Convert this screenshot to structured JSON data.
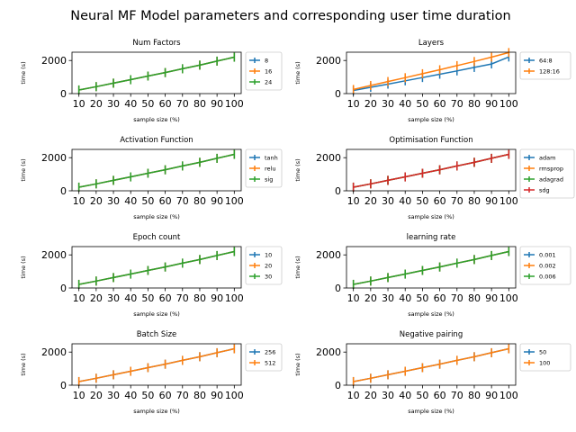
{
  "figure": {
    "title": "Neural MF Model parameters and corresponding user time duration"
  },
  "colors": {
    "series": [
      "#1f77b4",
      "#ff7f0e",
      "#2ca02c",
      "#d62728"
    ],
    "axis": "#000000",
    "legend_border": "#cccccc"
  },
  "chart_data": [
    {
      "type": "line",
      "title": "Num Factors",
      "xlabel": "sample size (%)",
      "ylabel": "time (s)",
      "x": [
        10,
        20,
        30,
        40,
        50,
        60,
        70,
        80,
        90,
        100
      ],
      "ylim": [
        0,
        2500
      ],
      "yticks": [
        0,
        2000
      ],
      "legend_position": "right",
      "series": [
        {
          "name": "8",
          "values": [
            220,
            420,
            630,
            840,
            1060,
            1270,
            1500,
            1720,
            1960,
            2200
          ]
        },
        {
          "name": "16",
          "values": [
            220,
            420,
            630,
            840,
            1060,
            1270,
            1500,
            1720,
            1960,
            2200
          ]
        },
        {
          "name": "24",
          "values": [
            220,
            420,
            630,
            840,
            1060,
            1270,
            1500,
            1720,
            1960,
            2200
          ]
        }
      ]
    },
    {
      "type": "line",
      "title": "Layers",
      "xlabel": "sample size (%)",
      "ylabel": "time (s)",
      "x": [
        10,
        20,
        30,
        40,
        50,
        60,
        70,
        80,
        90,
        100
      ],
      "ylim": [
        0,
        2500
      ],
      "yticks": [
        0,
        2000
      ],
      "legend_position": "right",
      "series": [
        {
          "name": "64:8",
          "values": [
            190,
            380,
            570,
            770,
            970,
            1170,
            1370,
            1580,
            1790,
            2210
          ]
        },
        {
          "name": "128:16",
          "values": [
            250,
            490,
            730,
            960,
            1200,
            1440,
            1690,
            1940,
            2200,
            2480
          ]
        }
      ]
    },
    {
      "type": "line",
      "title": "Activation Function",
      "xlabel": "sample size (%)",
      "ylabel": "time (s)",
      "x": [
        10,
        20,
        30,
        40,
        50,
        60,
        70,
        80,
        90,
        100
      ],
      "ylim": [
        0,
        2500
      ],
      "yticks": [
        0,
        2000
      ],
      "legend_position": "right",
      "series": [
        {
          "name": "tanh",
          "values": [
            220,
            420,
            630,
            840,
            1060,
            1270,
            1500,
            1720,
            1960,
            2200
          ]
        },
        {
          "name": "relu",
          "values": [
            220,
            420,
            630,
            840,
            1060,
            1270,
            1500,
            1720,
            1960,
            2200
          ]
        },
        {
          "name": "sig",
          "values": [
            220,
            420,
            630,
            840,
            1060,
            1270,
            1500,
            1720,
            1960,
            2200
          ]
        }
      ]
    },
    {
      "type": "line",
      "title": "Optimisation Function",
      "xlabel": "sample size (%)",
      "ylabel": "time (s)",
      "x": [
        10,
        20,
        30,
        40,
        50,
        60,
        70,
        80,
        90,
        100
      ],
      "ylim": [
        0,
        2500
      ],
      "yticks": [
        0,
        2000
      ],
      "legend_position": "right",
      "series": [
        {
          "name": "adam",
          "values": [
            220,
            420,
            630,
            840,
            1060,
            1270,
            1500,
            1720,
            1960,
            2200
          ]
        },
        {
          "name": "rmsprop",
          "values": [
            220,
            420,
            630,
            840,
            1060,
            1270,
            1500,
            1720,
            1960,
            2200
          ]
        },
        {
          "name": "adagrad",
          "values": [
            220,
            420,
            630,
            840,
            1060,
            1270,
            1500,
            1720,
            1960,
            2200
          ]
        },
        {
          "name": "sdg",
          "values": [
            220,
            420,
            630,
            840,
            1060,
            1270,
            1500,
            1720,
            1960,
            2200
          ]
        }
      ]
    },
    {
      "type": "line",
      "title": "Epoch count",
      "xlabel": "sample size (%)",
      "ylabel": "time (s)",
      "x": [
        10,
        20,
        30,
        40,
        50,
        60,
        70,
        80,
        90,
        100
      ],
      "ylim": [
        0,
        2500
      ],
      "yticks": [
        0,
        2000
      ],
      "legend_position": "right",
      "series": [
        {
          "name": "10",
          "values": [
            220,
            420,
            630,
            840,
            1060,
            1270,
            1500,
            1720,
            1960,
            2200
          ]
        },
        {
          "name": "20",
          "values": [
            220,
            420,
            630,
            840,
            1060,
            1270,
            1500,
            1720,
            1960,
            2200
          ]
        },
        {
          "name": "30",
          "values": [
            220,
            420,
            630,
            840,
            1060,
            1270,
            1500,
            1720,
            1960,
            2200
          ]
        }
      ]
    },
    {
      "type": "line",
      "title": "learning rate",
      "xlabel": "sample size (%)",
      "ylabel": "time (s)",
      "x": [
        10,
        20,
        30,
        40,
        50,
        60,
        70,
        80,
        90,
        100
      ],
      "ylim": [
        0,
        2500
      ],
      "yticks": [
        0,
        2000
      ],
      "legend_position": "right",
      "series": [
        {
          "name": "0.001",
          "values": [
            220,
            420,
            630,
            840,
            1060,
            1270,
            1500,
            1720,
            1960,
            2200
          ]
        },
        {
          "name": "0.002",
          "values": [
            220,
            420,
            630,
            840,
            1060,
            1270,
            1500,
            1720,
            1960,
            2200
          ]
        },
        {
          "name": "0.006",
          "values": [
            220,
            420,
            630,
            840,
            1060,
            1270,
            1500,
            1720,
            1960,
            2200
          ]
        }
      ]
    },
    {
      "type": "line",
      "title": "Batch Size",
      "xlabel": "sample size (%)",
      "ylabel": "time (s)",
      "x": [
        10,
        20,
        30,
        40,
        50,
        60,
        70,
        80,
        90,
        100
      ],
      "ylim": [
        0,
        2500
      ],
      "yticks": [
        0,
        2000
      ],
      "legend_position": "right",
      "series": [
        {
          "name": "256",
          "values": [
            220,
            420,
            630,
            840,
            1060,
            1270,
            1500,
            1720,
            1960,
            2200
          ]
        },
        {
          "name": "512",
          "values": [
            220,
            420,
            630,
            840,
            1060,
            1270,
            1500,
            1720,
            1960,
            2200
          ]
        }
      ]
    },
    {
      "type": "line",
      "title": "Negative pairing",
      "xlabel": "sample size (%)",
      "ylabel": "time (s)",
      "x": [
        10,
        20,
        30,
        40,
        50,
        60,
        70,
        80,
        90,
        100
      ],
      "ylim": [
        0,
        2500
      ],
      "yticks": [
        0,
        2000
      ],
      "legend_position": "right",
      "series": [
        {
          "name": "50",
          "values": [
            220,
            420,
            630,
            840,
            1060,
            1270,
            1500,
            1720,
            1960,
            2200
          ]
        },
        {
          "name": "100",
          "values": [
            220,
            420,
            630,
            840,
            1060,
            1270,
            1500,
            1720,
            1960,
            2200
          ]
        }
      ]
    }
  ]
}
